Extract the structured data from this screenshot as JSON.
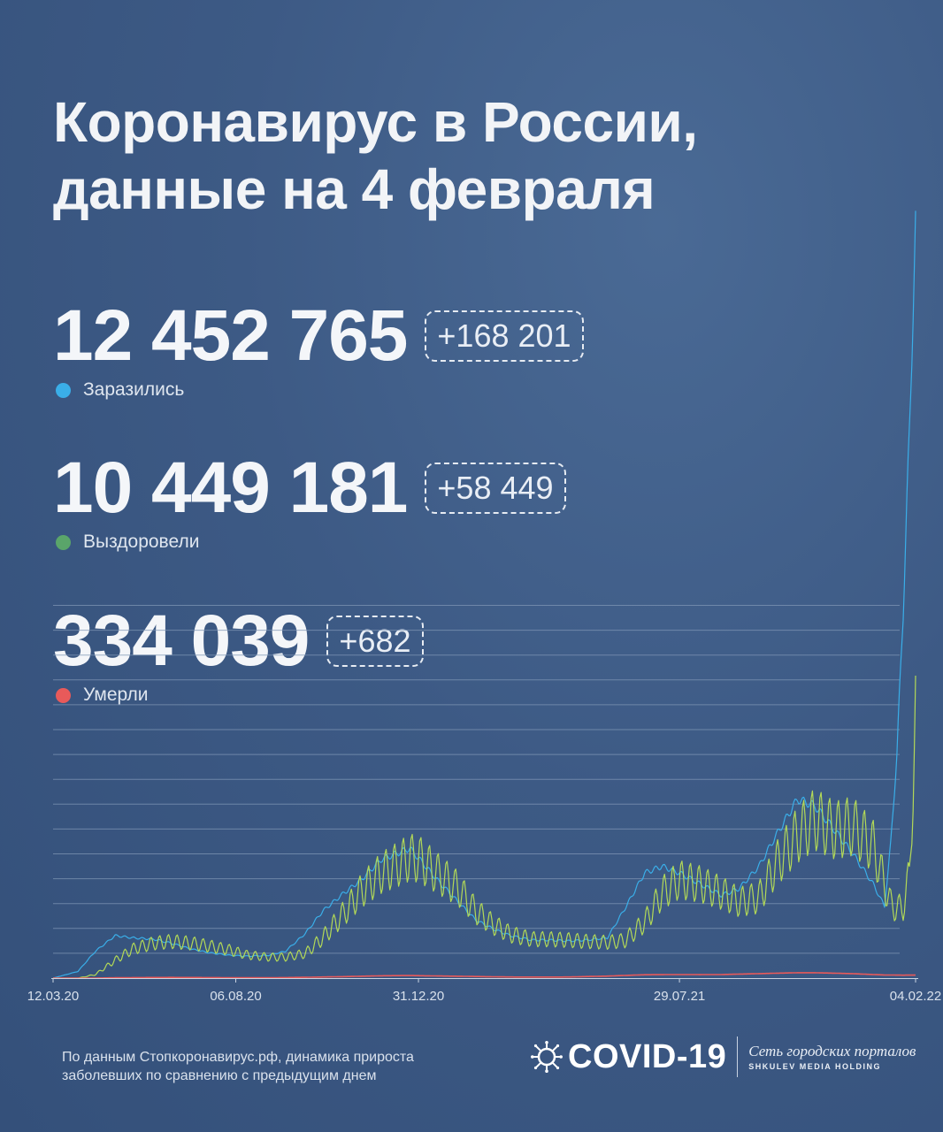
{
  "title": {
    "line1": "Коронавирус в России,",
    "line2": "данные на 4 февраля"
  },
  "stats": [
    {
      "value": "12 452 765",
      "delta": "+168 201",
      "label": "Заразились",
      "color": "#3aaee8"
    },
    {
      "value": "10 449 181",
      "delta": "+58 449",
      "label": "Выздоровели",
      "color": "#5aa56a"
    },
    {
      "value": "334 039",
      "delta": "+682",
      "label": "Умерли",
      "color": "#e85a5a"
    }
  ],
  "footer": {
    "line1": "По данным Стопкоронавирус.рф, динамика прироста",
    "line2": "заболевших по сравнению с предыдущим днем"
  },
  "logo": {
    "word": "COVID-19",
    "network": "Сеть городских порталов",
    "holding": "SHKULEV MEDIA HOLDING"
  },
  "colors": {
    "infected": "#3aaee8",
    "recovered": "#b3d957",
    "deaths": "#e85a5a",
    "grid": "#7f95b4",
    "axis": "#c9d4e2"
  },
  "chart_data": {
    "type": "line",
    "x_tick_labels": [
      "12.03.20",
      "06.08.20",
      "31.12.20",
      "29.07.21",
      "04.02.22"
    ],
    "x": [
      "12.03.20",
      "01.04.20",
      "15.04.20",
      "01.05.20",
      "15.05.20",
      "01.06.20",
      "15.06.20",
      "01.07.20",
      "15.07.20",
      "01.08.20",
      "15.08.20",
      "01.09.20",
      "15.09.20",
      "01.10.20",
      "15.10.20",
      "01.11.20",
      "15.11.20",
      "01.12.20",
      "15.12.20",
      "24.12.20",
      "01.01.21",
      "15.01.21",
      "01.02.21",
      "15.02.21",
      "01.03.21",
      "15.03.21",
      "01.04.21",
      "15.04.21",
      "01.05.21",
      "15.05.21",
      "01.06.21",
      "15.06.21",
      "01.07.21",
      "15.07.21",
      "29.07.21",
      "15.08.21",
      "01.09.21",
      "15.09.21",
      "01.10.21",
      "15.10.21",
      "01.11.21",
      "15.11.21",
      "01.12.21",
      "15.12.21",
      "01.01.22",
      "10.01.22",
      "15.01.22",
      "20.01.22",
      "25.01.22",
      "30.01.22",
      "04.02.22"
    ],
    "series": [
      {
        "key": "infected",
        "values": [
          0,
          1500,
          6000,
          9500,
          9000,
          8700,
          7800,
          6500,
          5700,
          5100,
          4900,
          5100,
          6000,
          10000,
          15000,
          19000,
          22000,
          26500,
          28000,
          29000,
          26500,
          22000,
          17000,
          13000,
          11000,
          9500,
          8500,
          8500,
          8300,
          8500,
          9000,
          15500,
          23500,
          25000,
          23500,
          21000,
          18500,
          20000,
          25000,
          32000,
          40000,
          38500,
          33000,
          28000,
          21000,
          16000,
          30000,
          50000,
          82000,
          122000,
          168201
        ]
      },
      {
        "key": "recovered",
        "values": [
          0,
          0,
          800,
          4000,
          6500,
          7800,
          8200,
          7800,
          7200,
          6300,
          5200,
          4700,
          4700,
          5500,
          9000,
          14500,
          19500,
          23500,
          25500,
          27000,
          26500,
          23500,
          20000,
          15000,
          12000,
          9800,
          8700,
          8700,
          8500,
          8200,
          8000,
          8400,
          12500,
          19000,
          22000,
          21000,
          19000,
          17000,
          18000,
          25500,
          32000,
          35500,
          33000,
          34000,
          29500,
          21000,
          16500,
          15500,
          16000,
          23000,
          58449
        ]
      },
      {
        "key": "deaths",
        "values": [
          0,
          0,
          5,
          70,
          110,
          140,
          150,
          140,
          120,
          100,
          85,
          90,
          120,
          180,
          250,
          330,
          420,
          520,
          560,
          580,
          540,
          480,
          420,
          360,
          300,
          250,
          230,
          240,
          250,
          350,
          450,
          600,
          750,
          780,
          790,
          780,
          800,
          900,
          1000,
          1100,
          1200,
          1200,
          1100,
          1000,
          800,
          700,
          700,
          670,
          660,
          670,
          682
        ]
      }
    ]
  }
}
